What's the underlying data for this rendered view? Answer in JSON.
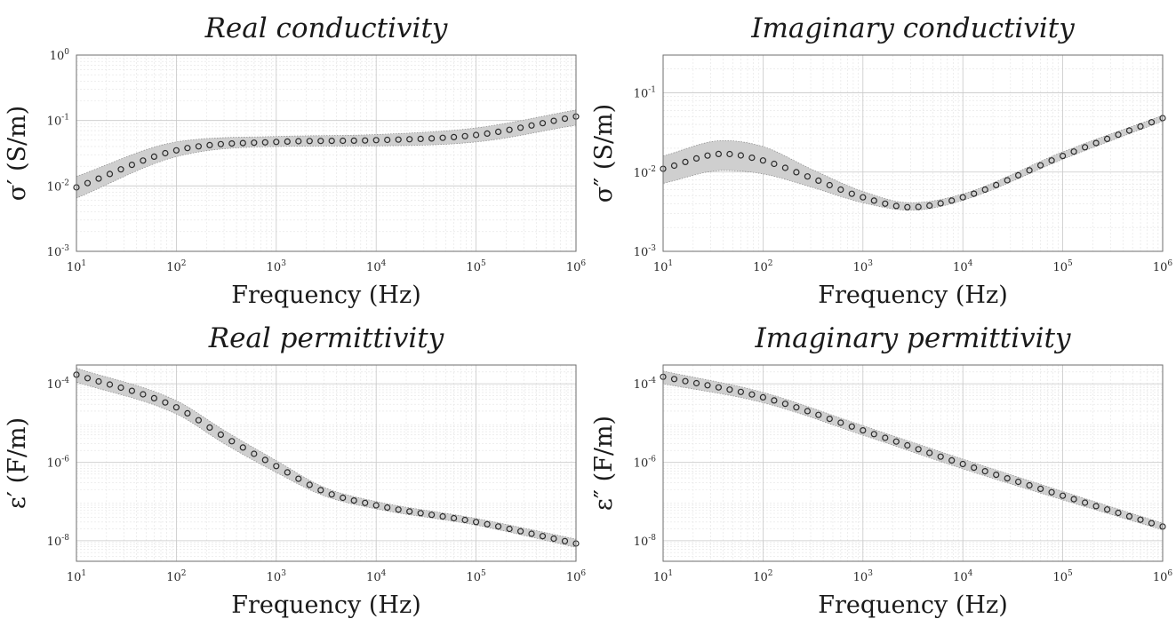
{
  "chart_data": [
    {
      "type": "scatter",
      "title": "Real conductivity",
      "xlabel": "Frequency (Hz)",
      "ylabel": "σ′ (S/m)",
      "x_scale": "log",
      "y_scale": "log",
      "xlim": [
        10,
        1000000
      ],
      "ylim": [
        0.001,
        1
      ],
      "x_ticks": [
        {
          "base": "10",
          "exp": "1"
        },
        {
          "base": "10",
          "exp": "2"
        },
        {
          "base": "10",
          "exp": "3"
        },
        {
          "base": "10",
          "exp": "4"
        },
        {
          "base": "10",
          "exp": "5"
        },
        {
          "base": "10",
          "exp": "6"
        }
      ],
      "y_ticks": [
        {
          "base": "10",
          "exp": "-3"
        },
        {
          "base": "10",
          "exp": "-2"
        },
        {
          "base": "10",
          "exp": "-1"
        },
        {
          "base": "10",
          "exp": "0"
        }
      ],
      "grid": true,
      "band_color": "#cfcfcf",
      "marker": "circle",
      "x": [
        10,
        100,
        1000,
        10000,
        100000,
        1000000
      ],
      "y": [
        0.0095,
        0.035,
        0.047,
        0.05,
        0.06,
        0.115
      ],
      "band_low": [
        0.0065,
        0.028,
        0.04,
        0.041,
        0.047,
        0.085
      ],
      "band_high": [
        0.014,
        0.047,
        0.057,
        0.061,
        0.077,
        0.145
      ]
    },
    {
      "type": "scatter",
      "title": "Imaginary conductivity",
      "xlabel": "Frequency (Hz)",
      "ylabel": "σ″ (S/m)",
      "x_scale": "log",
      "y_scale": "log",
      "xlim": [
        10,
        1000000
      ],
      "ylim": [
        0.001,
        0.3
      ],
      "x_ticks": [
        {
          "base": "10",
          "exp": "1"
        },
        {
          "base": "10",
          "exp": "2"
        },
        {
          "base": "10",
          "exp": "3"
        },
        {
          "base": "10",
          "exp": "4"
        },
        {
          "base": "10",
          "exp": "5"
        },
        {
          "base": "10",
          "exp": "6"
        }
      ],
      "y_ticks": [
        {
          "base": "10",
          "exp": "-3"
        },
        {
          "base": "10",
          "exp": "-2"
        },
        {
          "base": "10",
          "exp": "-1"
        }
      ],
      "grid": true,
      "band_color": "#cfcfcf",
      "marker": "circle",
      "x": [
        10,
        40,
        100,
        300,
        1000,
        3000,
        10000,
        100000,
        1000000
      ],
      "y": [
        0.011,
        0.017,
        0.014,
        0.0085,
        0.0048,
        0.0036,
        0.0048,
        0.016,
        0.048
      ],
      "band_low": [
        0.0072,
        0.0105,
        0.0095,
        0.0065,
        0.0041,
        0.0033,
        0.0044,
        0.0145,
        0.044
      ],
      "band_high": [
        0.016,
        0.025,
        0.021,
        0.011,
        0.0057,
        0.0041,
        0.0053,
        0.018,
        0.052
      ]
    },
    {
      "type": "scatter",
      "title": "Real permittivity",
      "xlabel": "Frequency (Hz)",
      "ylabel": "ε′ (F/m)",
      "x_scale": "log",
      "y_scale": "log",
      "xlim": [
        10,
        1000000
      ],
      "ylim": [
        3e-09,
        0.0003
      ],
      "x_ticks": [
        {
          "base": "10",
          "exp": "1"
        },
        {
          "base": "10",
          "exp": "2"
        },
        {
          "base": "10",
          "exp": "3"
        },
        {
          "base": "10",
          "exp": "4"
        },
        {
          "base": "10",
          "exp": "5"
        },
        {
          "base": "10",
          "exp": "6"
        }
      ],
      "y_ticks": [
        {
          "base": "10",
          "exp": "-8"
        },
        {
          "base": "10",
          "exp": "-6"
        },
        {
          "base": "10",
          "exp": "-4"
        }
      ],
      "grid": true,
      "band_color": "#cfcfcf",
      "marker": "circle",
      "x": [
        10,
        100,
        300,
        1000,
        3000,
        10000,
        100000,
        1000000
      ],
      "y": [
        0.00017,
        2.5e-05,
        4.5e-06,
        8e-07,
        1.8e-07,
        8e-08,
        3e-08,
        8.5e-09
      ],
      "band_low": [
        0.00011,
        1.7e-05,
        3e-06,
        5.5e-07,
        1.4e-07,
        6.5e-08,
        2.5e-08,
        6.8e-09
      ],
      "band_high": [
        0.00025,
        3.7e-05,
        6.5e-06,
        1.1e-06,
        2.3e-07,
        1e-07,
        3.7e-08,
        1.1e-08
      ]
    },
    {
      "type": "scatter",
      "title": "Imaginary permittivity",
      "xlabel": "Frequency (Hz)",
      "ylabel": "ε″ (F/m)",
      "x_scale": "log",
      "y_scale": "log",
      "xlim": [
        10,
        1000000
      ],
      "ylim": [
        3e-09,
        0.0003
      ],
      "x_ticks": [
        {
          "base": "10",
          "exp": "1"
        },
        {
          "base": "10",
          "exp": "2"
        },
        {
          "base": "10",
          "exp": "3"
        },
        {
          "base": "10",
          "exp": "4"
        },
        {
          "base": "10",
          "exp": "5"
        },
        {
          "base": "10",
          "exp": "6"
        }
      ],
      "y_ticks": [
        {
          "base": "10",
          "exp": "-8"
        },
        {
          "base": "10",
          "exp": "-6"
        },
        {
          "base": "10",
          "exp": "-4"
        }
      ],
      "grid": true,
      "band_color": "#cfcfcf",
      "marker": "circle",
      "x": [
        10,
        100,
        1000,
        10000,
        100000,
        1000000
      ],
      "y": [
        0.00015,
        4.5e-05,
        6.5e-06,
        9e-07,
        1.4e-07,
        2.3e-08
      ],
      "band_low": [
        0.0001,
        3.3e-05,
        4.9e-06,
        6.8e-07,
        1.1e-07,
        1.9e-08
      ],
      "band_high": [
        0.00021,
        6e-05,
        8.5e-06,
        1.2e-06,
        1.8e-07,
        2.8e-08
      ]
    }
  ]
}
